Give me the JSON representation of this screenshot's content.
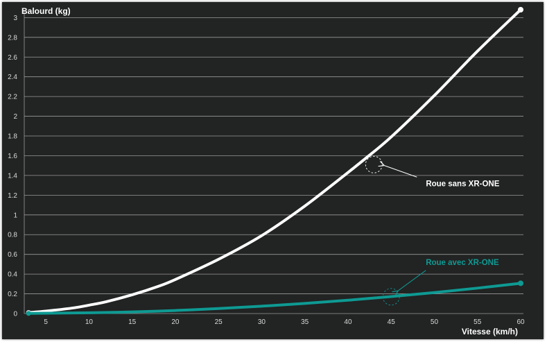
{
  "chart_data": {
    "type": "line",
    "ylabel": "Balourd (kg)",
    "xlabel": "Vitesse (km/h)",
    "xlim": [
      2.5,
      60
    ],
    "ylim": [
      0,
      3.08
    ],
    "x_ticks": [
      "5",
      "10",
      "15",
      "20",
      "25",
      "30",
      "35",
      "40",
      "45",
      "50",
      "55",
      "60"
    ],
    "y_ticks": [
      "0",
      "0.2",
      "0.4",
      "0.6",
      "0.8",
      "1",
      "1.2",
      "1.4",
      "1.6",
      "1.8",
      "2",
      "2.2",
      "2.4",
      "2.6",
      "2.8",
      "3"
    ],
    "grid": true,
    "series": [
      {
        "name": "Roue sans XR-ONE",
        "color": "#ffffff",
        "x": [
          3,
          5,
          8,
          10,
          12,
          15,
          18,
          20,
          25,
          30,
          35,
          40,
          42,
          45,
          50,
          55,
          60
        ],
        "y": [
          0.01,
          0.025,
          0.055,
          0.085,
          0.12,
          0.19,
          0.275,
          0.345,
          0.55,
          0.79,
          1.09,
          1.43,
          1.57,
          1.79,
          2.21,
          2.66,
          3.08
        ]
      },
      {
        "name": "Roue avec XR-ONE",
        "color": "#0e9a93",
        "x": [
          3,
          10,
          15,
          20,
          25,
          30,
          35,
          40,
          45,
          50,
          55,
          60
        ],
        "y": [
          0.002,
          0.008,
          0.017,
          0.031,
          0.051,
          0.075,
          0.103,
          0.135,
          0.172,
          0.213,
          0.258,
          0.307
        ]
      }
    ],
    "annotations": [
      {
        "text": "Roue sans XR-ONE",
        "x": 43,
        "y": 1.51,
        "color": "#ffffff"
      },
      {
        "text": "Roue avec XR-ONE",
        "x": 45,
        "y": 0.17,
        "color": "#0e9a93"
      }
    ]
  }
}
